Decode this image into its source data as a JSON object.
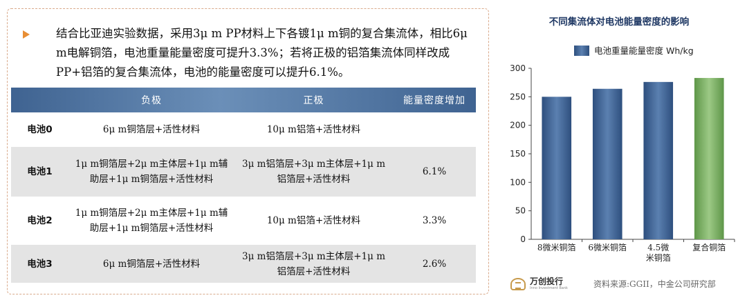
{
  "intro": {
    "bullet_icon": "orange-triangle-bullet",
    "text": "结合比亚迪实验数据，采用3μ m PP材料上下各镀1μ m铜的复合集流体，相比6μ m电解铜箔，电池重量能量密度可提升3.3%；若将正极的铝箔集流体同样改成PP+铝箔的复合集流体，电池的能量密度可以提升6.1%。"
  },
  "table": {
    "headers": [
      "",
      "负极",
      "正极",
      "能量密度增加"
    ],
    "rows": [
      {
        "name": "电池0",
        "anode": "6μ m铜箔层+活性材料",
        "cathode": "10μ m铝箔+活性材料",
        "increase": ""
      },
      {
        "name": "电池1",
        "anode": "1μ m铜箔层+2μ m主体层+1μ m辅助层+1μ m铜箔层+活性材料",
        "cathode": "3μ m铝箔层+3μ m主体层+1μ m铝箔层+活性材料",
        "increase": "6.1%"
      },
      {
        "name": "电池2",
        "anode": "1μ m铜箔层+2μ m主体层+1μ m辅助层+1μ m铜箔层+活性材料",
        "cathode": "10μ m铝箔+活性材料",
        "increase": "3.3%"
      },
      {
        "name": "电池3",
        "anode": "6μ m铜箔层+活性材料",
        "cathode": "3μ m铝箔层+3μ m主体层+1μ m铝箔层+活性材料",
        "increase": "2.6%"
      }
    ],
    "header_color": "#3f6391",
    "stripe_color": "#e4e4e4"
  },
  "chart_data": {
    "type": "bar",
    "title": "不同集流体对电池能量密度的影响",
    "legend": "电池重量能量密度 Wh/kg",
    "legend_position": "top",
    "categories": [
      "8微米铜箔",
      "6微米铜箔",
      "4.5微米铜箔",
      "复合铜箔"
    ],
    "category_lines": [
      [
        "8微米铜箔"
      ],
      [
        "6微米铜箔"
      ],
      [
        "4.5微",
        "米铜箔"
      ],
      [
        "复合铜箔"
      ]
    ],
    "values": [
      250,
      264,
      276,
      283
    ],
    "ylim": [
      0,
      300
    ],
    "yticks": [
      "0",
      "50",
      "100",
      "150",
      "200",
      "250",
      "300"
    ],
    "grid": false,
    "bar_color": "#3c5f8f",
    "highlight_color": "#78ad5f"
  },
  "footer": {
    "logo_icon": "wanchuang-logo-icon",
    "logo_cn": "万创投行",
    "logo_en": "Inno Investment Bank",
    "source": "资料来源:GGII，中金公司研究部"
  }
}
